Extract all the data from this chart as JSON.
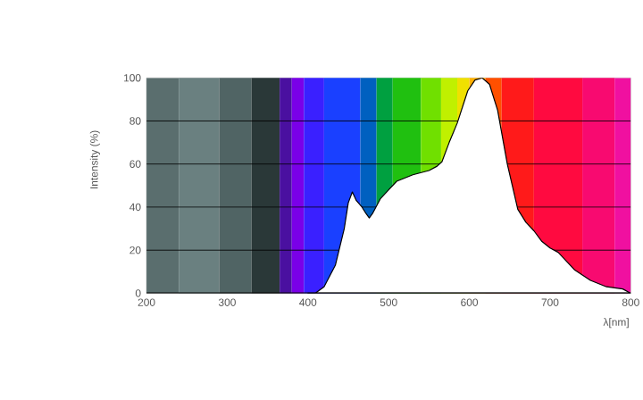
{
  "chart_data": {
    "type": "area",
    "xlabel": "λ[nm]",
    "ylabel": "Intensity (%)",
    "x": [
      400,
      409,
      420,
      434,
      445,
      450,
      455,
      460,
      467,
      472,
      476,
      480,
      490,
      500,
      510,
      530,
      550,
      560,
      566,
      575,
      585,
      598,
      607,
      616,
      625,
      635,
      647,
      660,
      670,
      680,
      690,
      700,
      710,
      730,
      750,
      770,
      790,
      800
    ],
    "series": [
      {
        "color": "#ffffff",
        "values": [
          0,
          0,
          3,
          13,
          30,
          42,
          47,
          43,
          40,
          37,
          35,
          37,
          44,
          48,
          52,
          55,
          57,
          59,
          61,
          70,
          79,
          94,
          99,
          100,
          97,
          85,
          60,
          39,
          33,
          29,
          24,
          21,
          19,
          11,
          6,
          3,
          2,
          0
        ]
      }
    ],
    "xlim": [
      200,
      800
    ],
    "ylim": [
      0,
      100
    ],
    "xticks": [
      200,
      300,
      400,
      500,
      600,
      700,
      800
    ],
    "yticks": [
      0,
      20,
      40,
      60,
      80,
      100
    ],
    "grid": "y",
    "bands": [
      {
        "axis": "x",
        "from": 200,
        "to": 240,
        "color": "#5a6e6e"
      },
      {
        "axis": "x",
        "from": 240,
        "to": 290,
        "color": "#6a8080"
      },
      {
        "axis": "x",
        "from": 290,
        "to": 330,
        "color": "#506464"
      },
      {
        "axis": "x",
        "from": 330,
        "to": 365,
        "color": "#2a3838"
      },
      {
        "axis": "x",
        "from": 365,
        "to": 380,
        "color": "#4a10a0"
      },
      {
        "axis": "x",
        "from": 380,
        "to": 395,
        "color": "#7a00e8"
      },
      {
        "axis": "x",
        "from": 395,
        "to": 420,
        "color": "#3a20ff"
      },
      {
        "axis": "x",
        "from": 420,
        "to": 465,
        "color": "#1a40ff"
      },
      {
        "axis": "x",
        "from": 465,
        "to": 485,
        "color": "#0060c0"
      },
      {
        "axis": "x",
        "from": 485,
        "to": 505,
        "color": "#00a040"
      },
      {
        "axis": "x",
        "from": 505,
        "to": 540,
        "color": "#20c010"
      },
      {
        "axis": "x",
        "from": 540,
        "to": 565,
        "color": "#70e000"
      },
      {
        "axis": "x",
        "from": 565,
        "to": 585,
        "color": "#c0f000"
      },
      {
        "axis": "x",
        "from": 585,
        "to": 600,
        "color": "#f0e000"
      },
      {
        "axis": "x",
        "from": 600,
        "to": 620,
        "color": "#ffb000"
      },
      {
        "axis": "x",
        "from": 620,
        "to": 640,
        "color": "#ff5000"
      },
      {
        "axis": "x",
        "from": 640,
        "to": 680,
        "color": "#ff1a1a"
      },
      {
        "axis": "x",
        "from": 680,
        "to": 740,
        "color": "#ff0a40"
      },
      {
        "axis": "x",
        "from": 740,
        "to": 780,
        "color": "#f80a70"
      },
      {
        "axis": "x",
        "from": 780,
        "to": 800,
        "color": "#f010a0"
      }
    ]
  }
}
